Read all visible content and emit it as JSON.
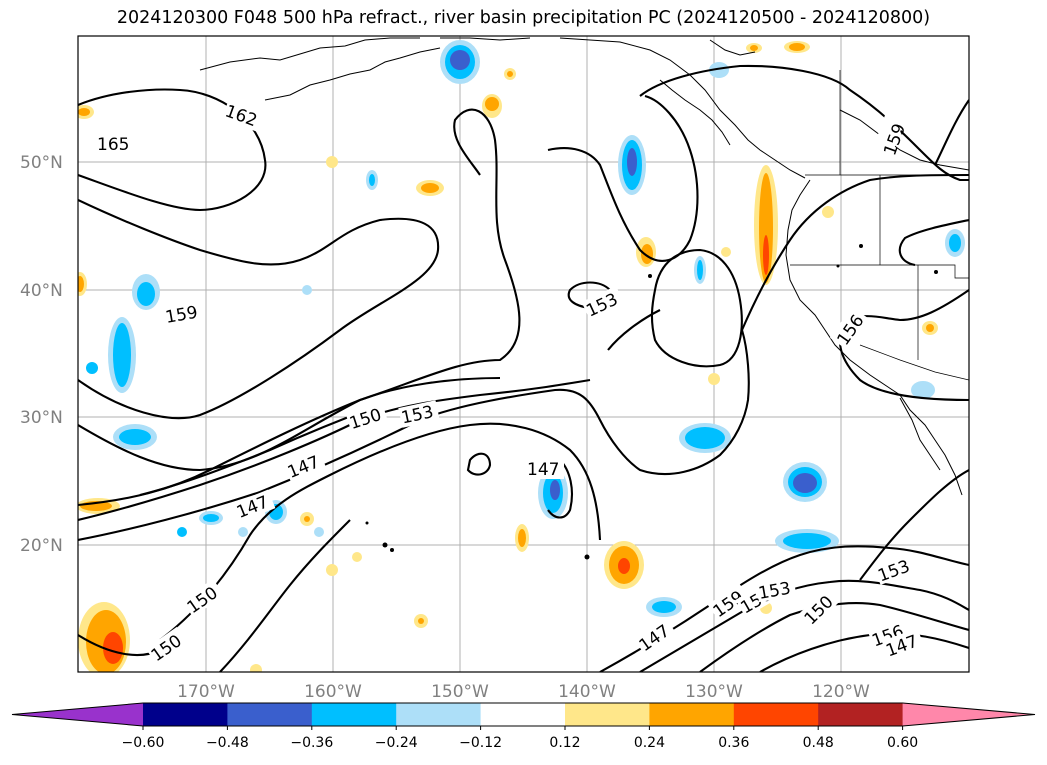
{
  "title": "2024120300 F048 500 hPa refract., river basin precipitation PC (2024120500 - 2024120800)",
  "lat_labels": [
    "50°N",
    "40°N",
    "30°N",
    "20°N"
  ],
  "lon_labels": [
    "170°W",
    "160°W",
    "150°W",
    "140°W",
    "130°W",
    "120°W"
  ],
  "colorbar": {
    "ticks": [
      "−0.60",
      "−0.48",
      "−0.36",
      "−0.24",
      "−0.12",
      "0.12",
      "0.24",
      "0.36",
      "0.48",
      "0.60"
    ],
    "colors": [
      "#9932CC",
      "#00008B",
      "#3A5FCD",
      "#00BFFF",
      "#ADDFF8",
      "#FFFFFF",
      "#FFE78A",
      "#FFA500",
      "#FF4500",
      "#B22222",
      "#FF87AA"
    ]
  },
  "contour_labels": [
    "165",
    "162",
    "159",
    "159",
    "156",
    "153",
    "153",
    "150",
    "147",
    "147",
    "147",
    "150",
    "150",
    "159",
    "156",
    "153",
    "150",
    "153",
    "156",
    "147"
  ]
}
